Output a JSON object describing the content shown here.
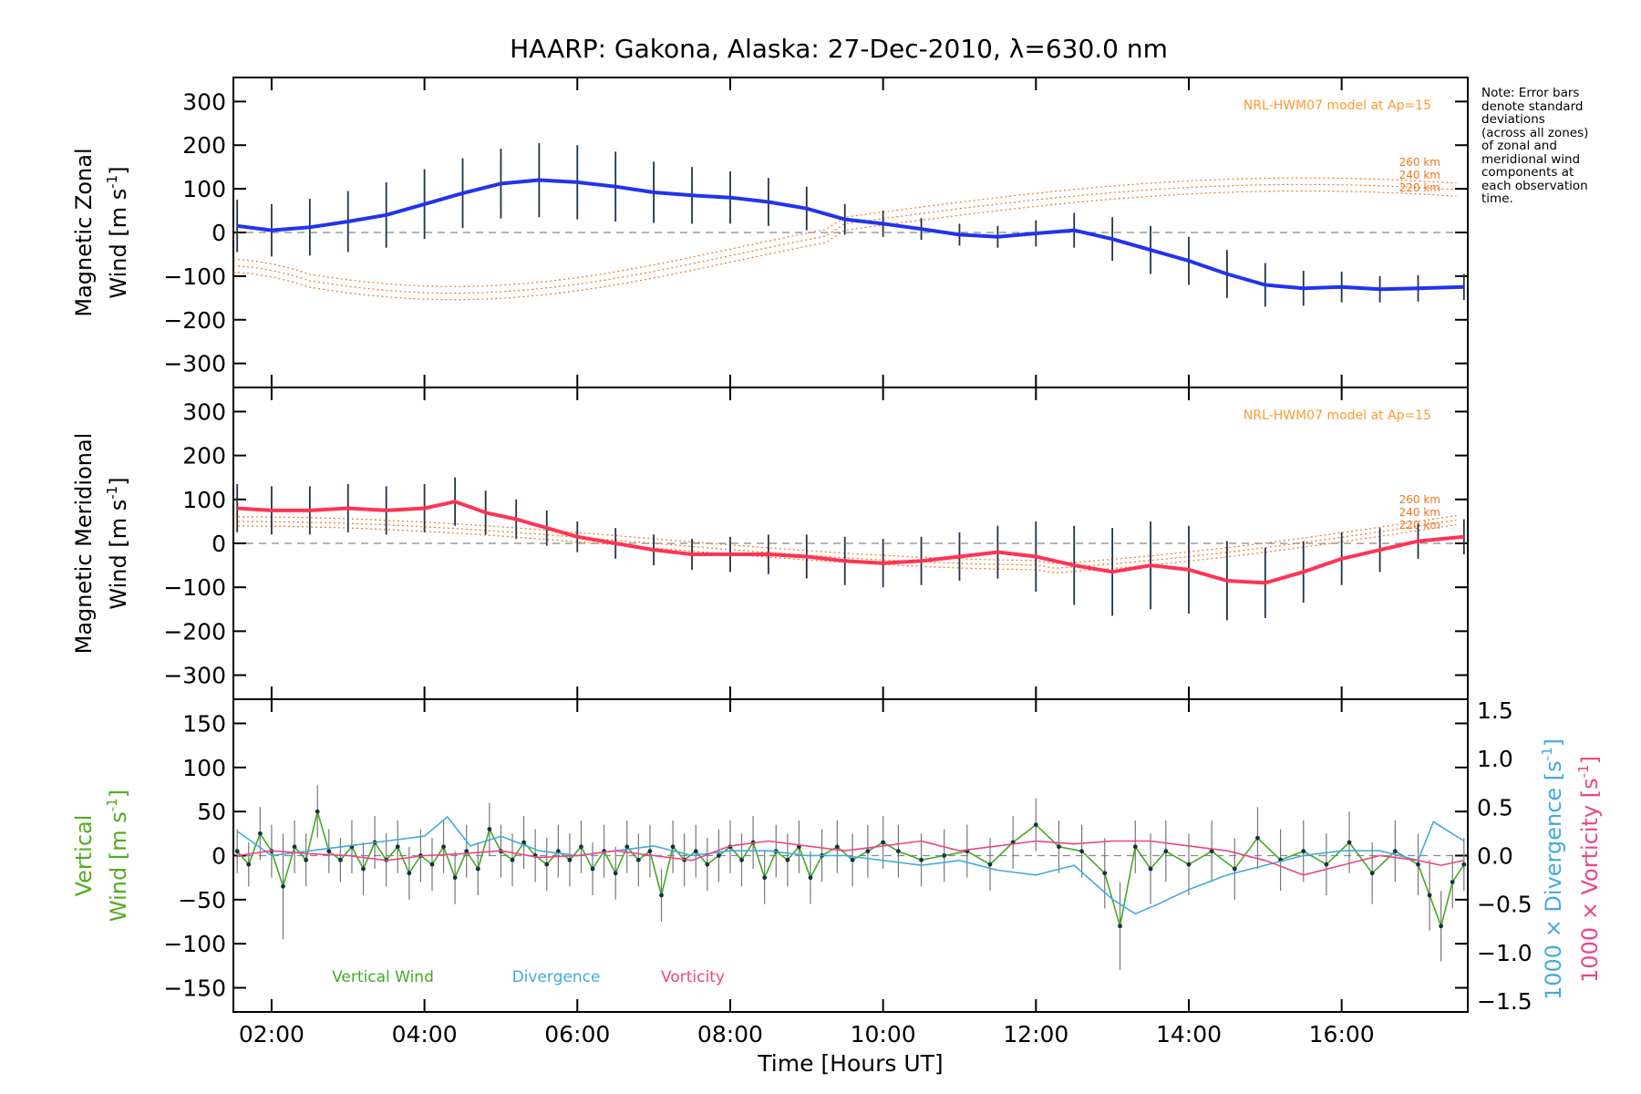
{
  "chart_data": {
    "type": "line",
    "title": "HAARP: Gakona,  Alaska: 27-Dec-2010, λ=630.0 nm",
    "xlabel": "Time [Hours UT]",
    "x_tick_labels": [
      "02:00",
      "04:00",
      "06:00",
      "08:00",
      "10:00",
      "12:00",
      "14:00",
      "16:00"
    ],
    "x_tick_hours": [
      2,
      4,
      6,
      8,
      10,
      12,
      14,
      16
    ],
    "xlim_hours": [
      1.5,
      17.65
    ],
    "note": [
      "Note: Error bars",
      "denote standard",
      "deviations",
      "(across all zones)",
      "of zonal and",
      "meridional wind",
      "components at",
      "each observation",
      "time."
    ],
    "panels": [
      {
        "id": "zonal",
        "ylabel_line1": "Magnetic Zonal",
        "ylabel_line2": "Wind [m s",
        "ylabel_sup": "-1",
        "ylabel_close": "]",
        "ylim": [
          -330,
          330
        ],
        "yticks": [
          300,
          200,
          100,
          0,
          -100,
          -200,
          -300
        ],
        "ytick_labels": [
          "300",
          "200",
          "100",
          "0",
          "−100",
          "−200",
          "−300"
        ],
        "model_label": "NRL-HWM07 model at Ap=15",
        "altitude_labels": [
          "260 km",
          "240 km",
          "220 km"
        ],
        "series": [
          {
            "name": "Magnetic Zonal Wind",
            "color": "#2233ee",
            "x": [
              1.55,
              2.0,
              2.5,
              3.0,
              3.5,
              4.0,
              4.5,
              5.0,
              5.5,
              6.0,
              6.5,
              7.0,
              7.5,
              8.0,
              8.5,
              9.0,
              9.5,
              10.0,
              10.5,
              11.0,
              11.5,
              12.0,
              12.5,
              13.0,
              13.5,
              14.0,
              14.5,
              15.0,
              15.5,
              16.0,
              16.5,
              17.0,
              17.6
            ],
            "y": [
              15,
              5,
              12,
              25,
              40,
              65,
              90,
              112,
              120,
              115,
              105,
              92,
              85,
              80,
              70,
              55,
              30,
              20,
              8,
              -5,
              -10,
              -2,
              5,
              -15,
              -40,
              -65,
              -95,
              -120,
              -128,
              -125,
              -130,
              -128,
              -125
            ],
            "err": [
              60,
              60,
              65,
              70,
              75,
              80,
              80,
              80,
              85,
              85,
              80,
              70,
              65,
              60,
              55,
              50,
              35,
              30,
              25,
              25,
              25,
              30,
              40,
              50,
              55,
              55,
              55,
              50,
              40,
              35,
              30,
              30,
              30
            ]
          }
        ]
      },
      {
        "id": "meridional",
        "ylabel_line1": "Magnetic Meridional",
        "ylabel_line2": "Wind [m s",
        "ylabel_sup": "-1",
        "ylabel_close": "]",
        "ylim": [
          -330,
          330
        ],
        "yticks": [
          300,
          200,
          100,
          0,
          -100,
          -200,
          -300
        ],
        "ytick_labels": [
          "300",
          "200",
          "100",
          "0",
          "−100",
          "−200",
          "−300"
        ],
        "model_label": "NRL-HWM07 model at Ap=15",
        "altitude_labels": [
          "260 km",
          "240 km",
          "220 km"
        ],
        "series": [
          {
            "name": "Magnetic Meridional Wind",
            "color": "#ff3355",
            "x": [
              1.55,
              2.0,
              2.5,
              3.0,
              3.5,
              4.0,
              4.4,
              4.8,
              5.2,
              5.6,
              6.0,
              6.5,
              7.0,
              7.5,
              8.0,
              8.5,
              9.0,
              9.5,
              10.0,
              10.5,
              11.0,
              11.5,
              12.0,
              12.5,
              13.0,
              13.5,
              14.0,
              14.5,
              15.0,
              15.5,
              16.0,
              16.5,
              17.0,
              17.6
            ],
            "y": [
              80,
              75,
              75,
              80,
              75,
              80,
              95,
              70,
              55,
              35,
              15,
              0,
              -15,
              -25,
              -25,
              -25,
              -30,
              -40,
              -45,
              -40,
              -30,
              -20,
              -30,
              -50,
              -65,
              -50,
              -60,
              -85,
              -90,
              -65,
              -35,
              -15,
              5,
              15
            ],
            "err": [
              55,
              55,
              55,
              55,
              55,
              55,
              55,
              50,
              45,
              40,
              35,
              35,
              35,
              35,
              40,
              45,
              50,
              55,
              55,
              55,
              55,
              60,
              80,
              90,
              100,
              100,
              100,
              90,
              80,
              70,
              60,
              50,
              40,
              40
            ]
          }
        ]
      },
      {
        "id": "vertical",
        "ylabel_line1": "Vertical",
        "ylabel_line2": "Wind [m s",
        "ylabel_sup": "-1",
        "ylabel_close": "]",
        "ylim": [
          -165,
          165
        ],
        "yticks": [
          150,
          100,
          50,
          0,
          -50,
          -100,
          -150
        ],
        "ytick_labels": [
          "150",
          "100",
          "50",
          "0",
          "−50",
          "−100",
          "−150"
        ],
        "right_yticks": [
          1.5,
          1.0,
          0.5,
          0.0,
          -0.5,
          -1.0,
          -1.5
        ],
        "right_ytick_labels": [
          "1.5",
          "1.0",
          "0.5",
          "0.0",
          "−0.5",
          "−1.0",
          "−1.5"
        ],
        "right_ylabel_div": "1000 × Divergence [s",
        "right_ylabel_vort": "1000 × Vorticity [s",
        "right_ylabel_sup": "-1",
        "right_ylabel_close": "]",
        "series": [
          {
            "name": "Vertical Wind",
            "color": "#44aa22",
            "x": [
              1.55,
              1.7,
              1.85,
              2.0,
              2.15,
              2.3,
              2.45,
              2.6,
              2.75,
              2.9,
              3.05,
              3.2,
              3.35,
              3.5,
              3.65,
              3.8,
              3.95,
              4.1,
              4.25,
              4.4,
              4.55,
              4.7,
              4.85,
              5.0,
              5.15,
              5.3,
              5.45,
              5.6,
              5.75,
              5.9,
              6.05,
              6.2,
              6.35,
              6.5,
              6.65,
              6.8,
              6.95,
              7.1,
              7.25,
              7.4,
              7.55,
              7.7,
              7.85,
              8.0,
              8.15,
              8.3,
              8.45,
              8.6,
              8.75,
              8.9,
              9.05,
              9.2,
              9.4,
              9.6,
              9.8,
              10.0,
              10.2,
              10.5,
              10.8,
              11.1,
              11.4,
              11.7,
              12.0,
              12.3,
              12.6,
              12.9,
              13.1,
              13.3,
              13.5,
              13.7,
              14.0,
              14.3,
              14.6,
              14.9,
              15.2,
              15.5,
              15.8,
              16.1,
              16.4,
              16.7,
              17.0,
              17.15,
              17.3,
              17.45,
              17.6
            ],
            "y": [
              5,
              -10,
              25,
              5,
              -35,
              10,
              -5,
              50,
              5,
              -5,
              10,
              -15,
              15,
              -5,
              10,
              -20,
              0,
              -10,
              10,
              -25,
              5,
              -15,
              30,
              5,
              -5,
              15,
              0,
              -10,
              5,
              -5,
              10,
              -15,
              5,
              -20,
              10,
              -5,
              5,
              -45,
              10,
              -5,
              5,
              -10,
              0,
              10,
              -5,
              15,
              -25,
              5,
              -5,
              10,
              -25,
              0,
              10,
              -5,
              5,
              15,
              5,
              -5,
              0,
              5,
              -10,
              15,
              35,
              10,
              5,
              -20,
              -80,
              10,
              -15,
              5,
              -10,
              5,
              -15,
              20,
              -5,
              5,
              -10,
              15,
              -20,
              5,
              -10,
              -45,
              -80,
              -30,
              -10
            ],
            "err": [
              25,
              25,
              30,
              30,
              60,
              30,
              30,
              30,
              25,
              25,
              30,
              30,
              30,
              30,
              30,
              30,
              30,
              30,
              30,
              30,
              30,
              30,
              30,
              30,
              30,
              30,
              30,
              30,
              30,
              30,
              30,
              30,
              30,
              30,
              30,
              30,
              30,
              30,
              30,
              30,
              30,
              30,
              30,
              30,
              30,
              30,
              30,
              30,
              30,
              30,
              30,
              30,
              30,
              30,
              30,
              30,
              30,
              30,
              30,
              30,
              30,
              30,
              30,
              30,
              30,
              40,
              50,
              30,
              40,
              35,
              35,
              35,
              35,
              35,
              35,
              35,
              35,
              35,
              35,
              35,
              35,
              40,
              40,
              30,
              30
            ]
          },
          {
            "name": "Divergence",
            "color": "#44aadd",
            "x": [
              1.55,
              2.0,
              2.5,
              3.0,
              3.5,
              4.0,
              4.3,
              4.6,
              5.0,
              5.5,
              6.0,
              6.5,
              7.0,
              7.5,
              8.0,
              8.5,
              9.0,
              9.5,
              10.0,
              10.5,
              11.0,
              11.5,
              12.0,
              12.5,
              13.0,
              13.3,
              13.6,
              14.0,
              14.5,
              15.0,
              15.5,
              16.0,
              16.5,
              17.0,
              17.2,
              17.4,
              17.6
            ],
            "y": [
              0.25,
              0.0,
              0.05,
              0.1,
              0.15,
              0.2,
              0.4,
              0.1,
              0.2,
              0.05,
              0.0,
              0.05,
              0.1,
              0.0,
              0.05,
              0.05,
              0.0,
              0.0,
              -0.05,
              -0.1,
              -0.05,
              -0.15,
              -0.2,
              -0.1,
              -0.45,
              -0.6,
              -0.5,
              -0.35,
              -0.2,
              -0.1,
              0.0,
              0.05,
              0.05,
              -0.05,
              0.35,
              0.25,
              0.15
            ]
          },
          {
            "name": "Vorticity",
            "color": "#ee4488",
            "x": [
              1.55,
              2.0,
              2.5,
              3.0,
              3.5,
              4.0,
              4.5,
              5.0,
              5.5,
              6.0,
              6.5,
              7.0,
              7.5,
              8.0,
              8.5,
              9.0,
              9.5,
              10.0,
              10.5,
              11.0,
              11.5,
              12.0,
              12.5,
              13.0,
              13.5,
              14.0,
              14.5,
              15.0,
              15.5,
              16.0,
              16.5,
              17.0,
              17.3,
              17.6
            ],
            "y": [
              0.0,
              0.05,
              0.02,
              0.0,
              -0.05,
              0.0,
              0.02,
              0.05,
              -0.02,
              0.0,
              0.05,
              0.0,
              -0.05,
              0.1,
              0.15,
              0.1,
              0.05,
              0.1,
              0.15,
              0.05,
              0.1,
              0.15,
              0.12,
              0.15,
              0.15,
              0.1,
              0.05,
              -0.05,
              -0.2,
              -0.1,
              0.0,
              -0.05,
              -0.1,
              -0.05
            ]
          }
        ]
      }
    ]
  }
}
